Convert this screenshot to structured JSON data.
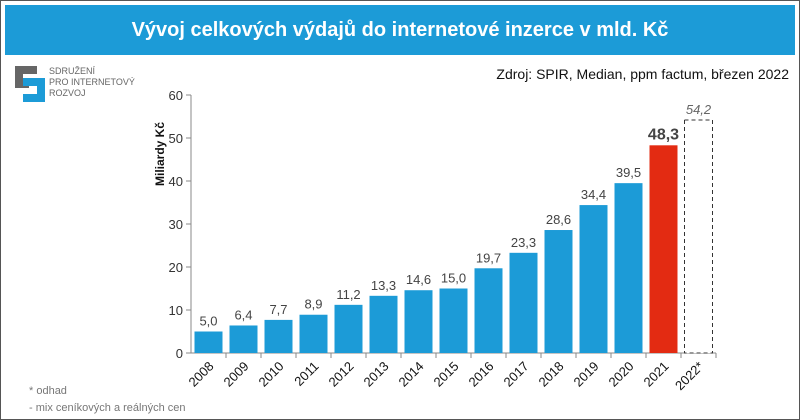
{
  "title": "Vývoj celkových výdajů do internetové inzerce v mld. Kč",
  "source": "Zdroj: SPIR, Median, ppm factum, březen 2022",
  "logo": {
    "lines": [
      "SDRUŽENÍ",
      "PRO INTERNETOVÝ",
      "ROZVOJ"
    ]
  },
  "notes": [
    "* odhad",
    "- mix ceníkových a reálných cen"
  ],
  "colors": {
    "bar": "#1c9bd7",
    "highlight": "#e32b12",
    "estimate": "#ffffff"
  },
  "chart_data": {
    "type": "bar",
    "ylabel": "Miliardy Kč",
    "ylim": [
      0,
      60
    ],
    "yticks": [
      0,
      10,
      20,
      30,
      40,
      50,
      60
    ],
    "categories": [
      "2008",
      "2009",
      "2010",
      "2011",
      "2012",
      "2013",
      "2014",
      "2015",
      "2016",
      "2017",
      "2018",
      "2019",
      "2020",
      "2021",
      "2022*"
    ],
    "values": [
      5.0,
      6.4,
      7.7,
      8.9,
      11.2,
      13.3,
      14.6,
      15.0,
      19.7,
      23.3,
      28.6,
      34.4,
      39.5,
      48.3,
      54.2
    ],
    "labels": [
      "5,0",
      "6,4",
      "7,7",
      "8,9",
      "11,2",
      "13,3",
      "14,6",
      "15,0",
      "19,7",
      "23,3",
      "28,6",
      "34,4",
      "39,5",
      "48,3",
      "54,2"
    ],
    "styles": [
      "normal",
      "normal",
      "normal",
      "normal",
      "normal",
      "normal",
      "normal",
      "normal",
      "normal",
      "normal",
      "normal",
      "normal",
      "normal",
      "highlight",
      "estimate"
    ],
    "grid": false
  }
}
